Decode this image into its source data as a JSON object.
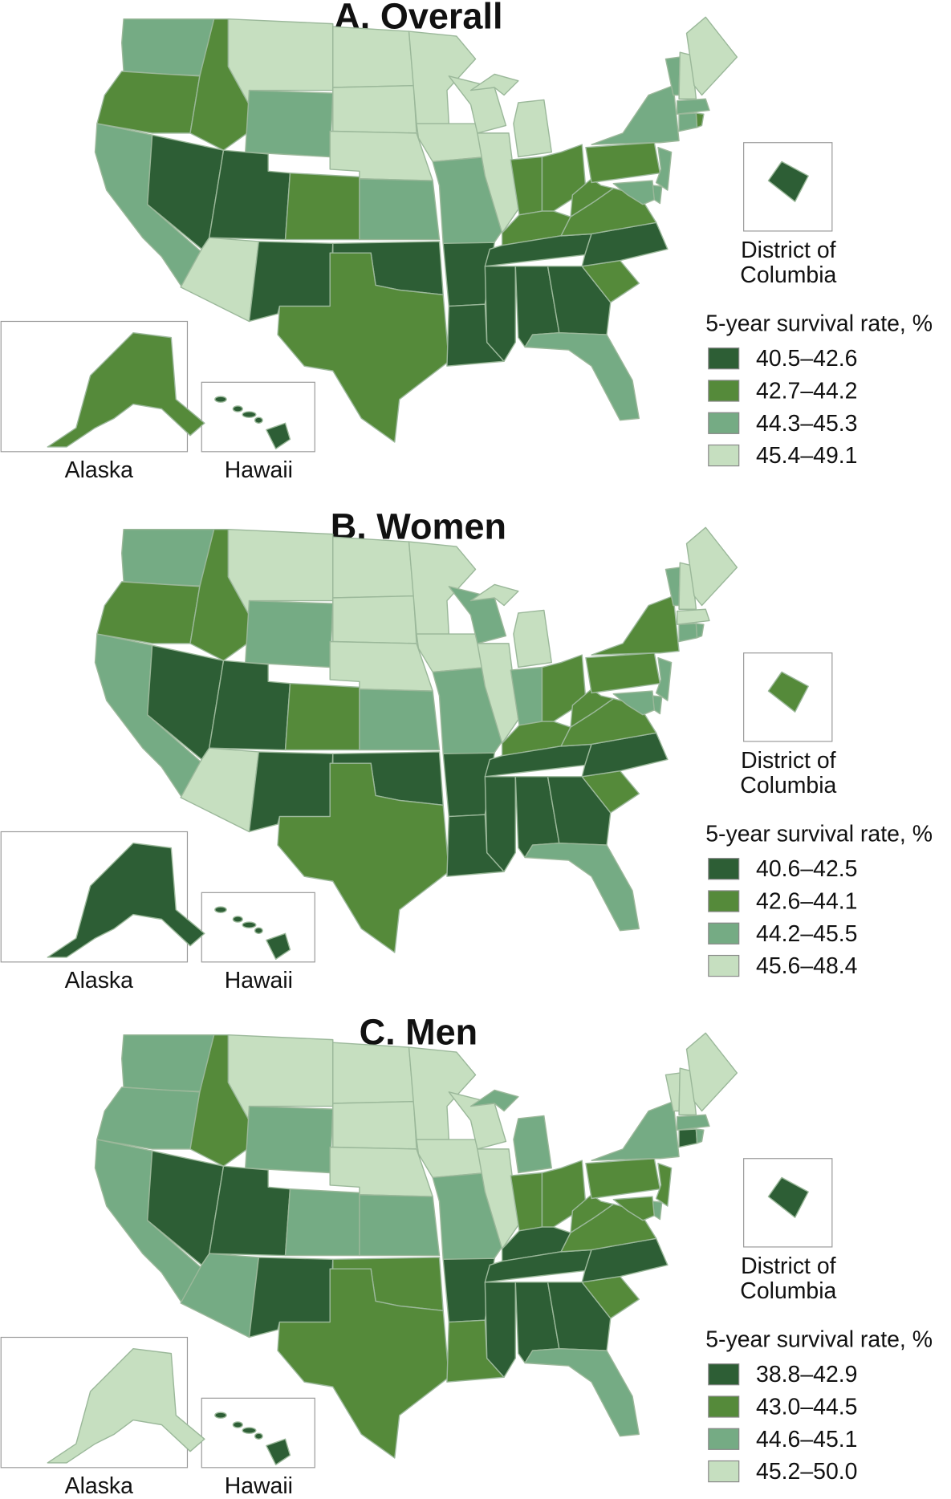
{
  "colors": [
    "#2d5e35",
    "#558a3a",
    "#75ab84",
    "#c6dfc0"
  ],
  "panels": [
    {
      "title": "A. Overall",
      "legend_title": "5-year survival rate, %",
      "legend": [
        "40.5–42.6",
        "42.7–44.2",
        "44.3–45.3",
        "45.4–49.1"
      ],
      "inset_labels": {
        "alaska": "Alaska",
        "hawaii": "Hawaii",
        "dc_line1": "District of",
        "dc_line2": "Columbia"
      },
      "states": {
        "WA": 2,
        "OR": 1,
        "CA": 2,
        "NV": 0,
        "ID": 1,
        "MT": 3,
        "WY": 2,
        "UT": 0,
        "CO": 1,
        "AZ": 3,
        "NM": 0,
        "ND": 3,
        "SD": 3,
        "NE": 3,
        "KS": 2,
        "OK": 0,
        "TX": 1,
        "MN": 3,
        "IA": 3,
        "MO": 2,
        "AR": 0,
        "LA": 0,
        "WI": 3,
        "IL": 3,
        "MI": 3,
        "MIU": 3,
        "IN": 1,
        "OH": 1,
        "KY": 1,
        "TN": 0,
        "MS": 0,
        "AL": 0,
        "GA": 0,
        "FL": 2,
        "SC": 1,
        "NC": 0,
        "VA": 1,
        "WV": 1,
        "PA": 1,
        "NY": 2,
        "VT": 2,
        "NH": 3,
        "ME": 3,
        "MA": 2,
        "CT": 2,
        "RI": 1,
        "NJ": 2,
        "DE": 2,
        "MD": 2,
        "AK": 1,
        "HI": 0,
        "DC": 0
      }
    },
    {
      "title": "B. Women",
      "legend_title": "5-year survival rate, %",
      "legend": [
        "40.6–42.5",
        "42.6–44.1",
        "44.2–45.5",
        "45.6–48.4"
      ],
      "inset_labels": {
        "alaska": "Alaska",
        "hawaii": "Hawaii",
        "dc_line1": "District of",
        "dc_line2": "Columbia"
      },
      "states": {
        "WA": 2,
        "OR": 1,
        "CA": 2,
        "NV": 0,
        "ID": 1,
        "MT": 3,
        "WY": 2,
        "UT": 0,
        "CO": 1,
        "AZ": 3,
        "NM": 0,
        "ND": 3,
        "SD": 3,
        "NE": 3,
        "KS": 2,
        "OK": 0,
        "TX": 1,
        "MN": 3,
        "IA": 3,
        "MO": 2,
        "AR": 0,
        "LA": 0,
        "WI": 2,
        "IL": 3,
        "MI": 3,
        "MIU": 3,
        "IN": 2,
        "OH": 1,
        "KY": 1,
        "TN": 0,
        "MS": 0,
        "AL": 0,
        "GA": 0,
        "FL": 2,
        "SC": 1,
        "NC": 0,
        "VA": 1,
        "WV": 1,
        "PA": 1,
        "NY": 1,
        "VT": 2,
        "NH": 3,
        "ME": 3,
        "MA": 3,
        "CT": 2,
        "RI": 2,
        "NJ": 2,
        "DE": 2,
        "MD": 2,
        "AK": 0,
        "HI": 0,
        "DC": 1
      }
    },
    {
      "title": "C. Men",
      "legend_title": "5-year survival rate, %",
      "legend": [
        "38.8–42.9",
        "43.0–44.5",
        "44.6–45.1",
        "45.2–50.0"
      ],
      "inset_labels": {
        "alaska": "Alaska",
        "hawaii": "Hawaii",
        "dc_line1": "District of",
        "dc_line2": "Columbia"
      },
      "states": {
        "WA": 2,
        "OR": 2,
        "CA": 2,
        "NV": 0,
        "ID": 1,
        "MT": 3,
        "WY": 2,
        "UT": 0,
        "CO": 2,
        "AZ": 2,
        "NM": 0,
        "ND": 3,
        "SD": 3,
        "NE": 3,
        "KS": 2,
        "OK": 1,
        "TX": 1,
        "MN": 3,
        "IA": 3,
        "MO": 2,
        "AR": 0,
        "LA": 1,
        "WI": 3,
        "IL": 3,
        "MI": 2,
        "MIU": 2,
        "IN": 1,
        "OH": 1,
        "KY": 0,
        "TN": 0,
        "MS": 0,
        "AL": 0,
        "GA": 0,
        "FL": 2,
        "SC": 1,
        "NC": 0,
        "VA": 1,
        "WV": 1,
        "PA": 1,
        "NY": 2,
        "VT": 3,
        "NH": 3,
        "ME": 3,
        "MA": 2,
        "CT": 0,
        "RI": 2,
        "NJ": 1,
        "DE": 2,
        "MD": 1,
        "AK": 3,
        "HI": 0,
        "DC": 0
      }
    }
  ]
}
